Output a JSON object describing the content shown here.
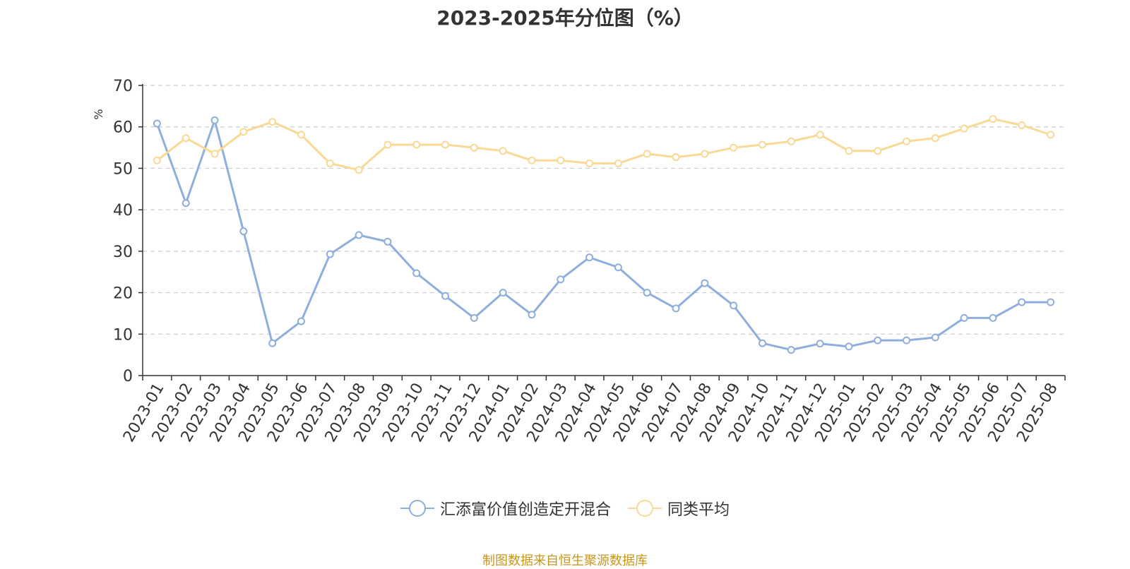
{
  "chart_data": {
    "type": "line",
    "title": "2023-2025年分位图（%）",
    "ylabel": "%",
    "ylim": [
      0,
      70
    ],
    "yticks": [
      0,
      10,
      20,
      30,
      40,
      50,
      60,
      70
    ],
    "grid": true,
    "legend_position": "bottom",
    "categories": [
      "2023-01",
      "2023-02",
      "2023-03",
      "2023-04",
      "2023-05",
      "2023-06",
      "2023-07",
      "2023-08",
      "2023-09",
      "2023-10",
      "2023-11",
      "2023-12",
      "2024-01",
      "2024-02",
      "2024-03",
      "2024-04",
      "2024-05",
      "2024-06",
      "2024-07",
      "2024-08",
      "2024-09",
      "2024-10",
      "2024-11",
      "2024-12",
      "2025-01",
      "2025-02",
      "2025-03",
      "2025-04",
      "2025-05",
      "2025-06",
      "2025-07",
      "2025-08"
    ],
    "series": [
      {
        "name": "汇添富价值创造定开混合",
        "color": "#8eaedb",
        "values": [
          60.8,
          41.6,
          61.6,
          34.8,
          7.8,
          13.1,
          29.3,
          33.9,
          32.3,
          24.7,
          19.2,
          13.9,
          20.0,
          14.7,
          23.2,
          28.5,
          26.1,
          20.0,
          16.2,
          22.3,
          16.9,
          7.8,
          6.2,
          7.7,
          7.0,
          8.5,
          8.5,
          9.2,
          13.9,
          13.9,
          17.7,
          17.7
        ]
      },
      {
        "name": "同类平均",
        "color": "#fad996",
        "values": [
          51.9,
          57.3,
          53.5,
          58.8,
          61.2,
          58.1,
          51.2,
          49.6,
          55.7,
          55.7,
          55.7,
          55.0,
          54.2,
          51.9,
          51.9,
          51.2,
          51.2,
          53.5,
          52.7,
          53.5,
          55.0,
          55.7,
          56.5,
          58.1,
          54.2,
          54.2,
          56.5,
          57.3,
          59.6,
          61.9,
          60.4,
          58.1
        ]
      }
    ]
  },
  "source_note": "制图数据来自恒生聚源数据库"
}
